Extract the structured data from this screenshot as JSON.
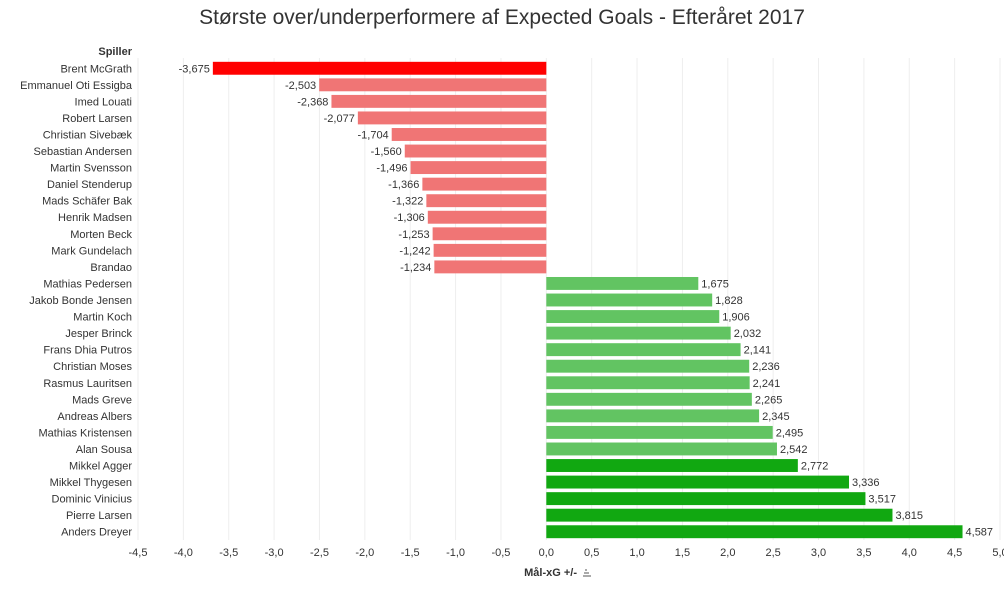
{
  "chart_data": {
    "type": "bar",
    "orientation": "horizontal",
    "title": "Største over/underperformere af Expected Goals - Efteråret 2017",
    "row_header": "Spiller",
    "xlabel": "Mål-xG +/-",
    "xlim": [
      -4.5,
      5.0
    ],
    "x_ticks": [
      -4.5,
      -4.0,
      -3.5,
      -3.0,
      -2.5,
      -2.0,
      -1.5,
      -1.0,
      -0.5,
      0.0,
      0.5,
      1.0,
      1.5,
      2.0,
      2.5,
      3.0,
      3.5,
      4.0,
      4.5,
      5.0
    ],
    "x_tick_labels": [
      "-4,5",
      "-4,0",
      "-3,5",
      "-3,0",
      "-2,5",
      "-2,0",
      "-1,5",
      "-1,0",
      "-0,5",
      "0,0",
      "0,5",
      "1,0",
      "1,5",
      "2,0",
      "2,5",
      "3,0",
      "3,5",
      "4,0",
      "4,5",
      "5,0"
    ],
    "grid": "vertical",
    "bars": [
      {
        "name": "Brent McGrath",
        "value": -3.675,
        "label": "-3,675",
        "color": "#ff0000"
      },
      {
        "name": "Emmanuel Oti Essigba",
        "value": -2.503,
        "label": "-2,503",
        "color": "#f07575"
      },
      {
        "name": "Imed Louati",
        "value": -2.368,
        "label": "-2,368",
        "color": "#f07575"
      },
      {
        "name": "Robert Larsen",
        "value": -2.077,
        "label": "-2,077",
        "color": "#f07575"
      },
      {
        "name": "Christian Sivebæk",
        "value": -1.704,
        "label": "-1,704",
        "color": "#f07575"
      },
      {
        "name": "Sebastian Andersen",
        "value": -1.56,
        "label": "-1,560",
        "color": "#f07575"
      },
      {
        "name": "Martin Svensson",
        "value": -1.496,
        "label": "-1,496",
        "color": "#f07575"
      },
      {
        "name": "Daniel Stenderup",
        "value": -1.366,
        "label": "-1,366",
        "color": "#f07575"
      },
      {
        "name": "Mads Schäfer Bak",
        "value": -1.322,
        "label": "-1,322",
        "color": "#f07575"
      },
      {
        "name": "Henrik Madsen",
        "value": -1.306,
        "label": "-1,306",
        "color": "#f07575"
      },
      {
        "name": "Morten Beck",
        "value": -1.253,
        "label": "-1,253",
        "color": "#f07575"
      },
      {
        "name": "Mark Gundelach",
        "value": -1.242,
        "label": "-1,242",
        "color": "#f07575"
      },
      {
        "name": "Brandao",
        "value": -1.234,
        "label": "-1,234",
        "color": "#f07575"
      },
      {
        "name": "Mathias Pedersen",
        "value": 1.675,
        "label": "1,675",
        "color": "#62c462"
      },
      {
        "name": "Jakob Bonde Jensen",
        "value": 1.828,
        "label": "1,828",
        "color": "#62c462"
      },
      {
        "name": "Martin Koch",
        "value": 1.906,
        "label": "1,906",
        "color": "#62c462"
      },
      {
        "name": "Jesper Brinck",
        "value": 2.032,
        "label": "2,032",
        "color": "#62c462"
      },
      {
        "name": "Frans Dhia Putros",
        "value": 2.141,
        "label": "2,141",
        "color": "#62c462"
      },
      {
        "name": "Christian Moses",
        "value": 2.236,
        "label": "2,236",
        "color": "#62c462"
      },
      {
        "name": "Rasmus Lauritsen",
        "value": 2.241,
        "label": "2,241",
        "color": "#62c462"
      },
      {
        "name": "Mads Greve",
        "value": 2.265,
        "label": "2,265",
        "color": "#62c462"
      },
      {
        "name": "Andreas Albers",
        "value": 2.345,
        "label": "2,345",
        "color": "#62c462"
      },
      {
        "name": "Mathias Kristensen",
        "value": 2.495,
        "label": "2,495",
        "color": "#62c462"
      },
      {
        "name": "Alan Sousa",
        "value": 2.542,
        "label": "2,542",
        "color": "#62c462"
      },
      {
        "name": "Mikkel Agger",
        "value": 2.772,
        "label": "2,772",
        "color": "#11a811"
      },
      {
        "name": "Mikkel Thygesen",
        "value": 3.336,
        "label": "3,336",
        "color": "#11a811"
      },
      {
        "name": "Dominic Vinicius",
        "value": 3.517,
        "label": "3,517",
        "color": "#11a811"
      },
      {
        "name": "Pierre Larsen",
        "value": 3.815,
        "label": "3,815",
        "color": "#11a811"
      },
      {
        "name": "Anders Dreyer",
        "value": 4.587,
        "label": "4,587",
        "color": "#11a811"
      }
    ]
  }
}
